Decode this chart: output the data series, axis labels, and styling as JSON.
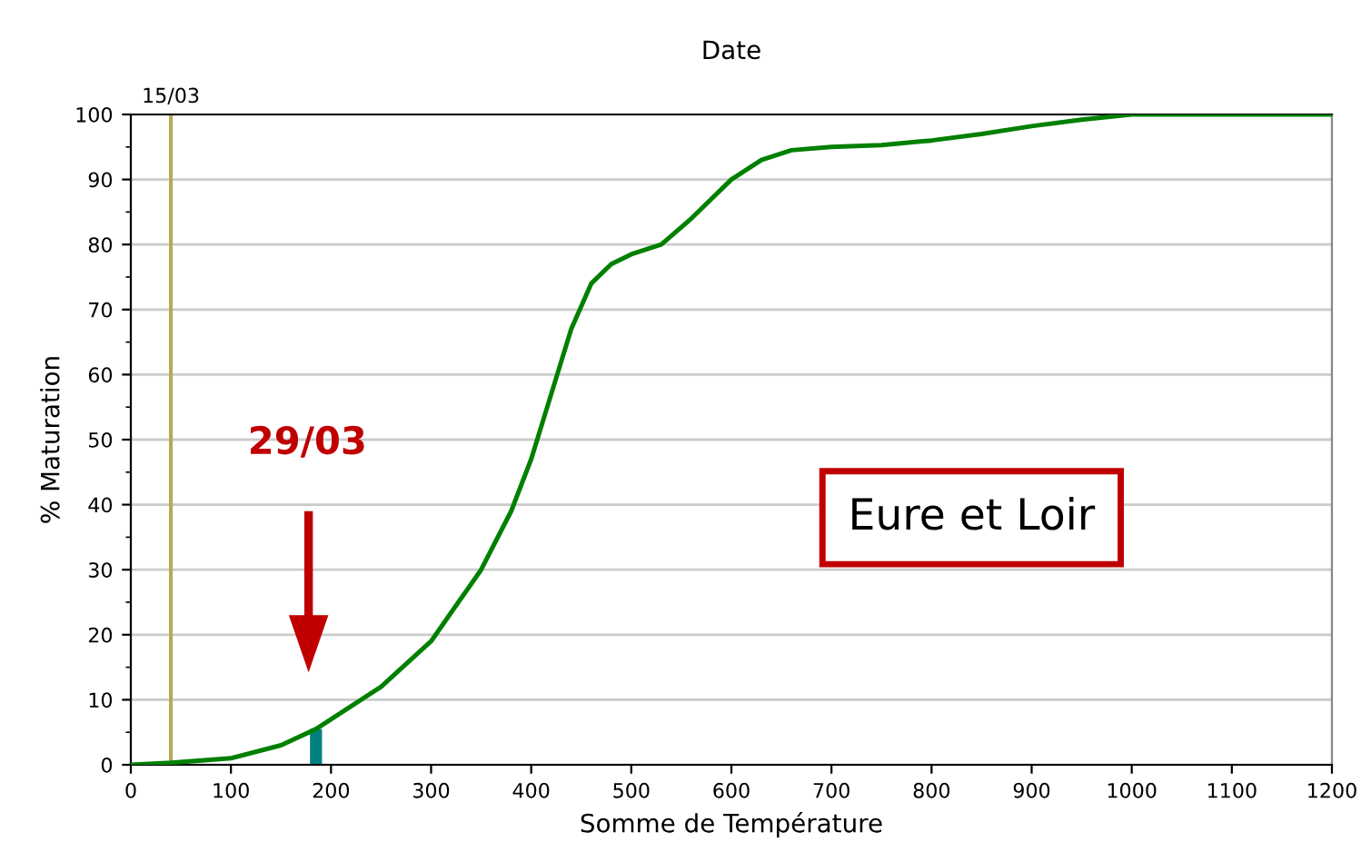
{
  "chart_data": {
    "type": "line",
    "title": "Date",
    "xlabel": "Somme de Température",
    "ylabel": "% Maturation",
    "xlim": [
      0,
      1200
    ],
    "xticks": [
      0,
      100,
      200,
      300,
      400,
      500,
      600,
      700,
      800,
      900,
      1000,
      1100,
      1200
    ],
    "ylim": [
      0,
      100
    ],
    "yticks": [
      0,
      10,
      20,
      30,
      40,
      50,
      60,
      70,
      80,
      90,
      100
    ],
    "grid": "y",
    "series": [
      {
        "color": "#008000",
        "x": [
          0,
          40,
          100,
          150,
          185,
          200,
          250,
          300,
          350,
          380,
          400,
          420,
          440,
          460,
          480,
          500,
          530,
          560,
          600,
          630,
          660,
          700,
          750,
          800,
          850,
          900,
          950,
          1000,
          1200
        ],
        "values": [
          0,
          0.3,
          1,
          3,
          5.5,
          7,
          12,
          19,
          30,
          39,
          47,
          57,
          67,
          74,
          77,
          78.5,
          80,
          84,
          90,
          93,
          94.5,
          95,
          95.3,
          96,
          97,
          98.2,
          99.2,
          100,
          100
        ]
      },
      {
        "type": "bar",
        "color": "#008080",
        "x": [
          185
        ],
        "values": [
          5.5
        ]
      }
    ],
    "ref_lines": [
      {
        "axis": "x",
        "value": 40,
        "color": "#b5aa5a"
      }
    ],
    "annotations": [
      "15/03",
      "29/03",
      "Eure et Loir"
    ]
  }
}
